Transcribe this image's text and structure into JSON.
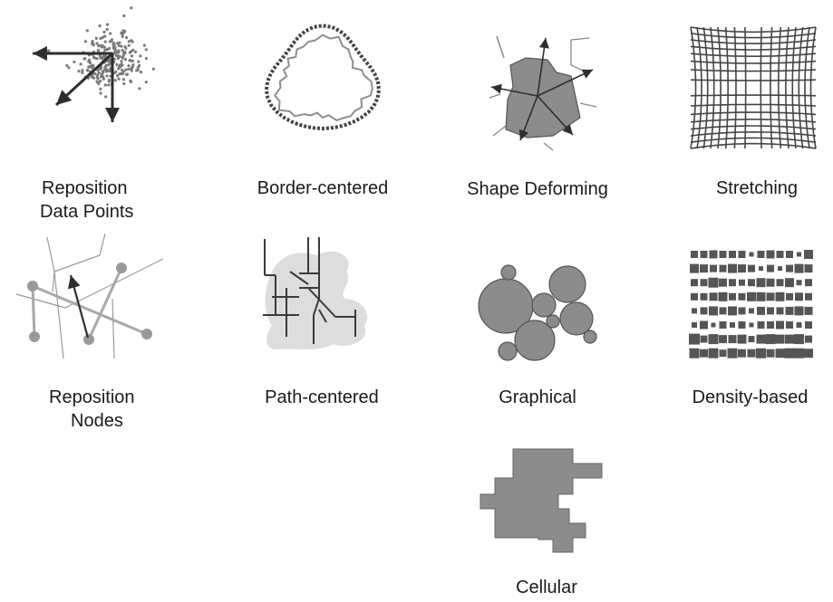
{
  "figure": {
    "colors": {
      "dark": "#2e2e2e",
      "fill": "#8c8c8c",
      "light": "#dddddd",
      "line": "#9a9a9a",
      "white": "#ffffff"
    },
    "panels": {
      "reposition_data_points": {
        "label_line1": "Reposition",
        "label_line2": "Data Points",
        "icon": "scatter-arrows-icon"
      },
      "border_centered": {
        "label": "Border-centered",
        "icon": "dashed-border-icon"
      },
      "shape_deforming": {
        "label": "Shape Deforming",
        "icon": "deformed-shape-icon"
      },
      "stretching": {
        "label": "Stretching",
        "icon": "bulge-grid-icon"
      },
      "reposition_nodes": {
        "label_line1": "Reposition",
        "label_line2": "Nodes",
        "icon": "node-graph-icon"
      },
      "path_centered": {
        "label": "Path-centered",
        "icon": "path-network-icon"
      },
      "graphical": {
        "label": "Graphical",
        "icon": "circles-icon"
      },
      "density_based": {
        "label": "Density-based",
        "icon": "square-density-icon"
      },
      "cellular": {
        "label": "Cellular",
        "icon": "cell-shape-icon"
      }
    }
  }
}
